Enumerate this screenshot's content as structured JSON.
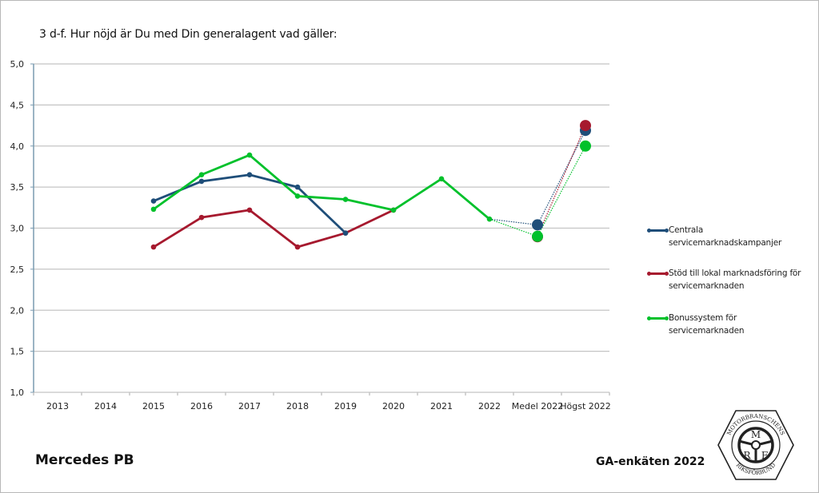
{
  "page": {
    "question": "3 d-f. Hur nöjd är Du med Din generalagent vad gäller:",
    "brand": "Mercedes PB",
    "survey": "GA-enkäten 2022",
    "logo": {
      "top_text": "MOTORBRANSCHENS",
      "bottom_text": "RIKSFÖRBUND",
      "letters": [
        "M",
        "R",
        "F"
      ]
    }
  },
  "chart_data": {
    "type": "line",
    "title": "3 d-f. Hur nöjd är Du med Din generalagent vad gäller:",
    "xlabel": "",
    "ylabel": "",
    "categories": [
      "2013",
      "2014",
      "2015",
      "2016",
      "2017",
      "2018",
      "2019",
      "2020",
      "2021",
      "2022",
      "Medel 2022",
      "Högst 2022"
    ],
    "ylim": [
      1.0,
      5.0
    ],
    "yticks": [
      "1,0",
      "1,5",
      "2,0",
      "2,5",
      "3,0",
      "3,5",
      "4,0",
      "4,5",
      "5,0"
    ],
    "ytick_values": [
      1.0,
      1.5,
      2.0,
      2.5,
      3.0,
      3.5,
      4.0,
      4.5,
      5.0
    ],
    "grid": true,
    "legend_position": "right",
    "series": [
      {
        "name": "Centrala servicemarknadskampanjer",
        "color": "#1f4e79",
        "values": [
          null,
          null,
          3.33,
          3.57,
          3.65,
          3.5,
          2.94,
          null,
          null,
          null
        ],
        "medel_2022": 3.04,
        "hogst_2022": 4.19
      },
      {
        "name": "Stöd till lokal marknadsföring för servicemarknaden",
        "color": "#a6192e",
        "values": [
          null,
          null,
          2.77,
          3.13,
          3.22,
          2.77,
          2.94,
          3.22,
          null,
          null
        ],
        "medel_2022": 2.9,
        "hogst_2022": 4.25
      },
      {
        "name": "Bonussystem för servicemarknaden",
        "color": "#00c12b",
        "values": [
          null,
          null,
          3.23,
          3.65,
          3.89,
          3.39,
          3.35,
          3.22,
          3.6,
          3.11
        ],
        "medel_2022": 2.9,
        "hogst_2022": 4.0
      }
    ]
  }
}
